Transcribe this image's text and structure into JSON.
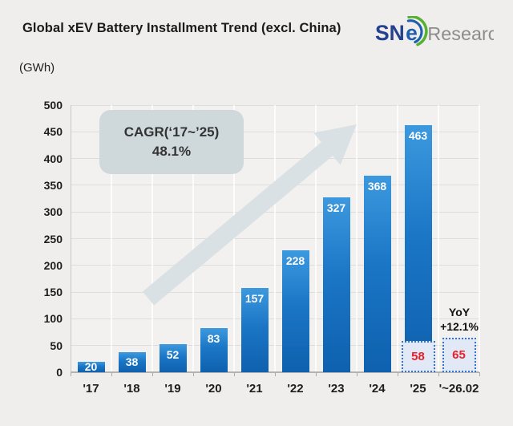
{
  "header": {
    "logo": {
      "sn": "SN",
      "e": "e",
      "research": "Research"
    }
  },
  "chart_data": {
    "type": "bar",
    "title": "Global xEV Battery Installment Trend (excl. China)",
    "unit_label": "(GWh)",
    "categories": [
      "'17",
      "'18",
      "'19",
      "'20",
      "'21",
      "'22",
      "'23",
      "'24",
      "'25",
      "'~26.02"
    ],
    "values": [
      20,
      38,
      52,
      83,
      157,
      228,
      327,
      368,
      463,
      null
    ],
    "overlays": [
      {
        "category_index": 8,
        "value": 58
      },
      {
        "category_index": 9,
        "value": 65
      }
    ],
    "ylim": [
      0,
      500
    ],
    "ytick_step": 50,
    "grid": true,
    "legend": "none",
    "annotations": {
      "cagr": {
        "line1": "CAGR(‘17~’25)",
        "line2": "48.1%"
      },
      "yoy": {
        "label": "YoY",
        "value": "+12.1%"
      }
    }
  },
  "colors": {
    "background": "#efeeec",
    "bar_top": "#3c99de",
    "bar_bottom": "#0e61ae",
    "bar_label": "#ffffff",
    "overlay_fill": "#e2e9f6",
    "overlay_border": "#3573c8",
    "overlay_text": "#e8202a",
    "grid": "#dddddb",
    "axis": "#b3b3b1",
    "arrow": "#d8dfe4",
    "cagr_box": "#cfd9dc",
    "logo_navy": "#23418f",
    "logo_blue": "#1d5fae",
    "logo_green": "#55b12f",
    "logo_gray": "#8c8c8c"
  }
}
